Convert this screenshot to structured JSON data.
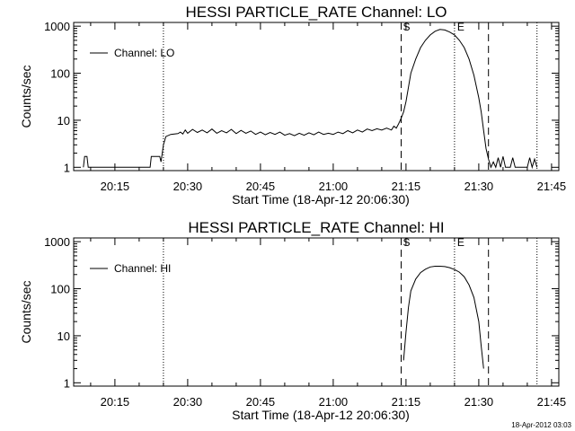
{
  "footer": {
    "timestamp": "18-Apr-2012 03:03"
  },
  "chart_data": [
    {
      "type": "line",
      "title": "HESSI PARTICLE_RATE Channel: LO",
      "xlabel": "Start Time (18-Apr-12 20:06:30)",
      "ylabel": "Counts/sec",
      "xlim": [
        "20:06:30",
        "21:46:30"
      ],
      "ylim": [
        0.85,
        1200
      ],
      "yscale": "log",
      "xticks": [
        "20:15",
        "20:30",
        "20:45",
        "21:00",
        "21:15",
        "21:30",
        "21:45"
      ],
      "yticks": [
        "1",
        "10",
        "100",
        "1000"
      ],
      "legend": {
        "position": "top-left",
        "entries": [
          "Channel: LO"
        ]
      },
      "markers": {
        "start_label": "S",
        "end_label": "E"
      },
      "dashed_lines": [
        "21:14",
        "21:32"
      ],
      "dotted_lines": [
        "20:25",
        "21:25",
        "21:42"
      ],
      "series": [
        {
          "name": "Channel: LO",
          "points": [
            [
              "20:08:30",
              1
            ],
            [
              "20:08:45",
              1.7
            ],
            [
              "20:09:15",
              1.7
            ],
            [
              "20:09:30",
              1
            ],
            [
              "20:22:15",
              1
            ],
            [
              "20:22:30",
              1.7
            ],
            [
              "20:24:15",
              1.7
            ],
            [
              "20:24:30",
              1.3
            ],
            [
              "20:25:00",
              3.0
            ],
            [
              "20:25:30",
              4.5
            ],
            [
              "20:26:30",
              5.0
            ],
            [
              "20:28:00",
              5.2
            ],
            [
              "20:28:30",
              5.6
            ],
            [
              "20:29:00",
              5.1
            ],
            [
              "20:29:30",
              6.2
            ],
            [
              "20:30:00",
              5.3
            ],
            [
              "20:31:00",
              6.4
            ],
            [
              "20:32:00",
              5.5
            ],
            [
              "20:33:00",
              6.2
            ],
            [
              "20:34:00",
              5.4
            ],
            [
              "20:35:00",
              6.5
            ],
            [
              "20:36:00",
              5.3
            ],
            [
              "20:37:00",
              6.0
            ],
            [
              "20:38:00",
              5.4
            ],
            [
              "20:39:00",
              6.4
            ],
            [
              "20:40:00",
              5.2
            ],
            [
              "20:41:00",
              6.1
            ],
            [
              "20:42:00",
              5.3
            ],
            [
              "20:43:00",
              5.9
            ],
            [
              "20:44:00",
              5.0
            ],
            [
              "20:45:00",
              5.6
            ],
            [
              "20:46:00",
              4.9
            ],
            [
              "20:47:00",
              5.5
            ],
            [
              "20:48:00",
              5.0
            ],
            [
              "20:49:00",
              5.6
            ],
            [
              "20:50:00",
              4.8
            ],
            [
              "20:51:00",
              5.2
            ],
            [
              "20:52:00",
              4.7
            ],
            [
              "20:53:00",
              5.3
            ],
            [
              "20:54:00",
              4.8
            ],
            [
              "20:55:00",
              5.4
            ],
            [
              "20:56:00",
              4.9
            ],
            [
              "20:57:00",
              5.6
            ],
            [
              "20:58:00",
              5.0
            ],
            [
              "20:59:00",
              5.3
            ],
            [
              "21:00:00",
              5.0
            ],
            [
              "21:01:00",
              5.6
            ],
            [
              "21:02:00",
              5.2
            ],
            [
              "21:03:00",
              6.0
            ],
            [
              "21:04:00",
              5.4
            ],
            [
              "21:05:00",
              6.2
            ],
            [
              "21:06:00",
              5.6
            ],
            [
              "21:07:00",
              6.5
            ],
            [
              "21:08:00",
              6.0
            ],
            [
              "21:09:00",
              6.6
            ],
            [
              "21:10:00",
              6.2
            ],
            [
              "21:11:00",
              6.8
            ],
            [
              "21:12:00",
              6.2
            ],
            [
              "21:12:30",
              7.5
            ],
            [
              "21:13:00",
              6.8
            ],
            [
              "21:13:30",
              8.5
            ],
            [
              "21:14:00",
              11
            ],
            [
              "21:14:30",
              15
            ],
            [
              "21:15:00",
              25
            ],
            [
              "21:15:30",
              50
            ],
            [
              "21:16:00",
              100
            ],
            [
              "21:17:00",
              200
            ],
            [
              "21:18:00",
              350
            ],
            [
              "21:19:00",
              500
            ],
            [
              "21:20:00",
              650
            ],
            [
              "21:21:00",
              780
            ],
            [
              "21:22:00",
              850
            ],
            [
              "21:23:00",
              830
            ],
            [
              "21:24:00",
              750
            ],
            [
              "21:25:00",
              650
            ],
            [
              "21:26:00",
              500
            ],
            [
              "21:27:00",
              350
            ],
            [
              "21:28:00",
              200
            ],
            [
              "21:29:00",
              90
            ],
            [
              "21:30:00",
              30
            ],
            [
              "21:30:30",
              15
            ],
            [
              "21:31:00",
              6
            ],
            [
              "21:31:30",
              2.5
            ],
            [
              "21:32:00",
              1.5
            ],
            [
              "21:32:30",
              1
            ],
            [
              "21:33:00",
              1.3
            ],
            [
              "21:33:30",
              1
            ],
            [
              "21:34:00",
              1.6
            ],
            [
              "21:34:30",
              1
            ],
            [
              "21:35:00",
              1.7
            ],
            [
              "21:35:30",
              1
            ],
            [
              "21:36:30",
              1
            ],
            [
              "21:37:00",
              1.6
            ],
            [
              "21:37:30",
              1
            ],
            [
              "21:40:00",
              1
            ],
            [
              "21:40:30",
              1.6
            ],
            [
              "21:41:00",
              1
            ],
            [
              "21:41:30",
              1.5
            ],
            [
              "21:42:00",
              1
            ]
          ]
        }
      ]
    },
    {
      "type": "line",
      "title": "HESSI PARTICLE_RATE Channel: HI",
      "xlabel": "Start Time (18-Apr-12 20:06:30)",
      "ylabel": "Counts/sec",
      "xlim": [
        "20:06:30",
        "21:46:30"
      ],
      "ylim": [
        0.85,
        1200
      ],
      "yscale": "log",
      "xticks": [
        "20:15",
        "20:30",
        "20:45",
        "21:00",
        "21:15",
        "21:30",
        "21:45"
      ],
      "yticks": [
        "1",
        "10",
        "100",
        "1000"
      ],
      "legend": {
        "position": "top-left",
        "entries": [
          "Channel: HI"
        ]
      },
      "markers": {
        "start_label": "S",
        "end_label": "E"
      },
      "dashed_lines": [
        "21:14",
        "21:32"
      ],
      "dotted_lines": [
        "20:25",
        "21:25",
        "21:42"
      ],
      "series": [
        {
          "name": "Channel: HI",
          "points": [
            [
              "21:14:30",
              3
            ],
            [
              "21:15:00",
              12
            ],
            [
              "21:15:30",
              40
            ],
            [
              "21:16:00",
              90
            ],
            [
              "21:17:00",
              160
            ],
            [
              "21:18:00",
              220
            ],
            [
              "21:19:00",
              260
            ],
            [
              "21:20:00",
              290
            ],
            [
              "21:21:00",
              300
            ],
            [
              "21:22:00",
              300
            ],
            [
              "21:23:00",
              295
            ],
            [
              "21:24:00",
              280
            ],
            [
              "21:25:00",
              255
            ],
            [
              "21:26:00",
              225
            ],
            [
              "21:27:00",
              180
            ],
            [
              "21:28:00",
              120
            ],
            [
              "21:29:00",
              65
            ],
            [
              "21:30:00",
              20
            ],
            [
              "21:30:30",
              6
            ],
            [
              "21:31:00",
              2
            ]
          ]
        }
      ]
    }
  ]
}
